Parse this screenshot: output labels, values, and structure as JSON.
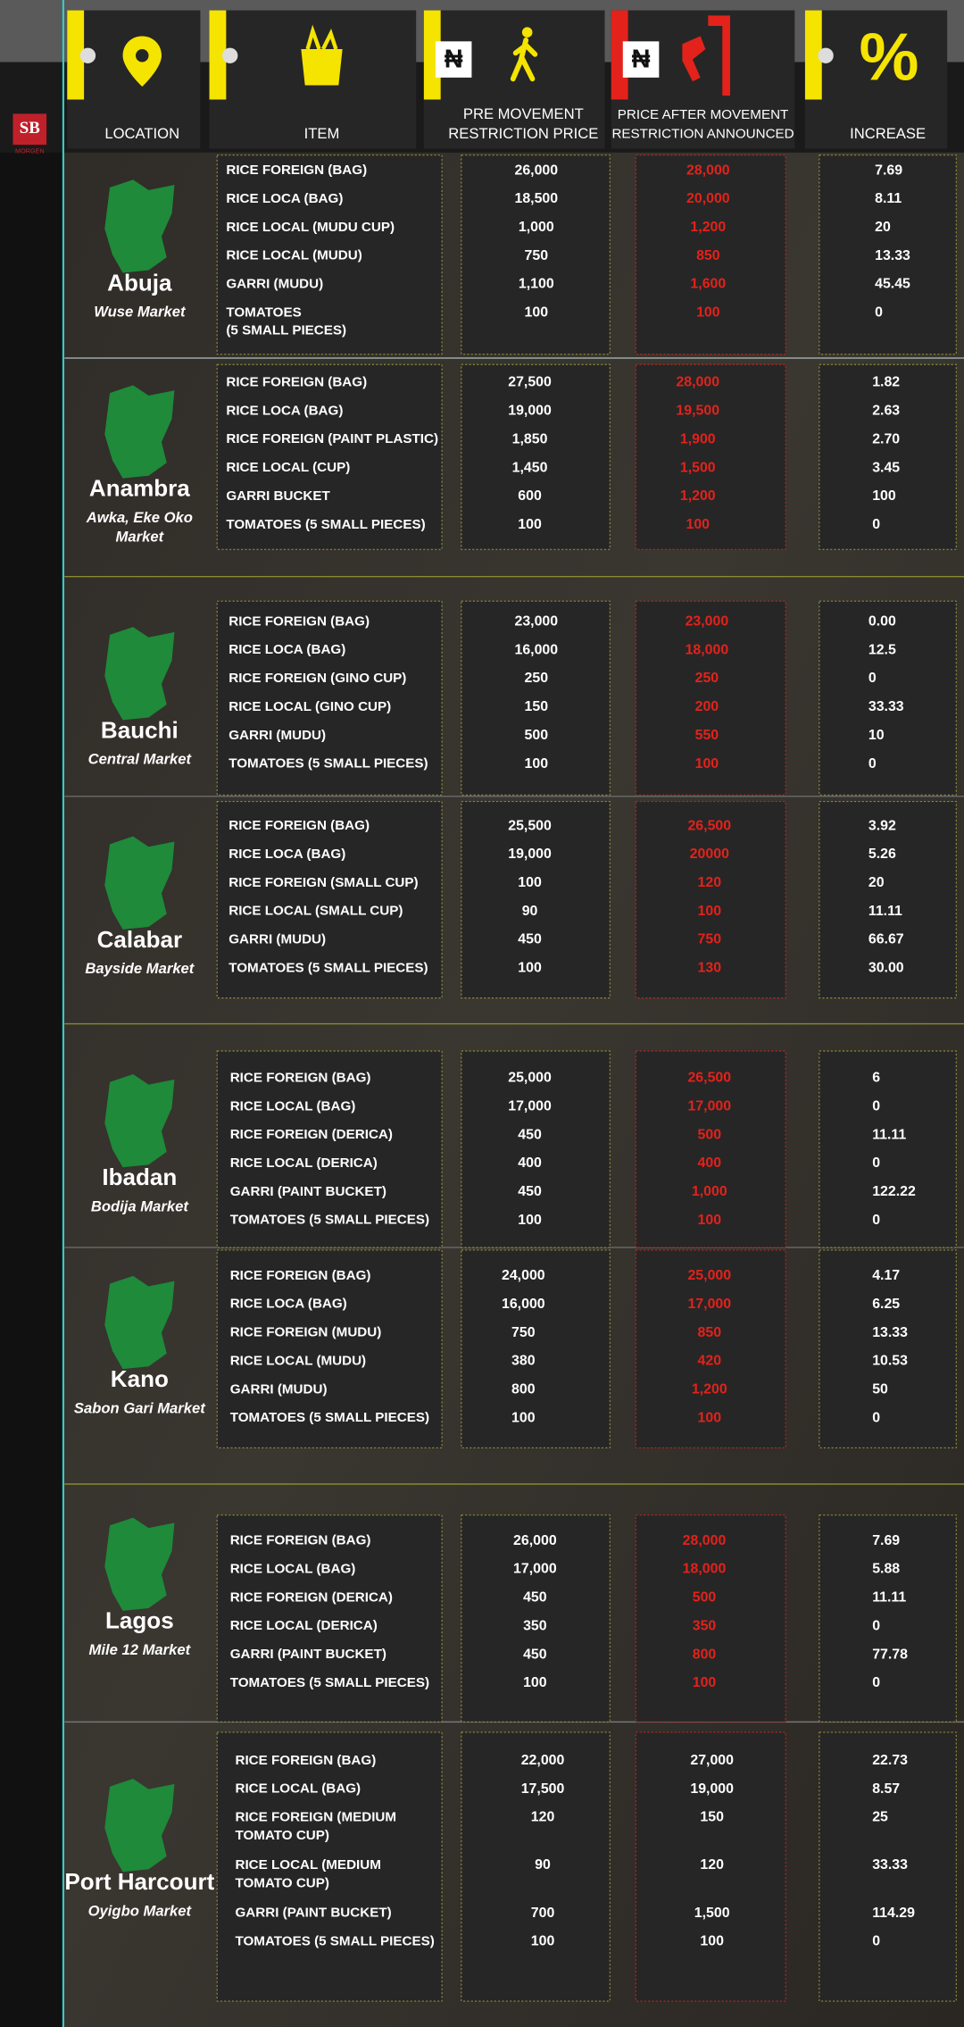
{
  "logo": {
    "initials": "SB",
    "name": "MORGEN"
  },
  "header": {
    "currency": "₦",
    "percent": "%",
    "columns": [
      [
        "LOCATION"
      ],
      [
        "ITEM"
      ],
      [
        "PRE MOVEMENT",
        "RESTRICTION PRICE"
      ],
      [
        "PRICE AFTER MOVEMENT",
        "RESTRICTION ANNOUNCED"
      ],
      [
        "INCREASE"
      ]
    ]
  },
  "locations": [
    {
      "name": "Abuja",
      "market": [
        "Wuse Market"
      ],
      "post_color": "#e3221b",
      "rows": [
        {
          "item": "RICE FOREIGN (BAG)",
          "pre": "26,000",
          "post": "28,000",
          "increase": "7.69"
        },
        {
          "item": "RICE LOCA (BAG)",
          "pre": "18,500",
          "post": "20,000",
          "increase": "8.11"
        },
        {
          "item": "RICE LOCAL (MUDU CUP)",
          "pre": "1,000",
          "post": "1,200",
          "increase": "20"
        },
        {
          "item": "RICE LOCAL (MUDU)",
          "pre": "750",
          "post": "850",
          "increase": "13.33"
        },
        {
          "item": "GARRI (MUDU)",
          "pre": "1,100",
          "post": "1,600",
          "increase": "45.45"
        },
        {
          "item": [
            "TOMATOES",
            "(5 SMALL PIECES)"
          ],
          "pre": "100",
          "post": "100",
          "increase": "0"
        }
      ]
    },
    {
      "name": "Anambra",
      "market": [
        "Awka, Eke Oko",
        "Market"
      ],
      "post_color": "#e3221b",
      "rows": [
        {
          "item": "RICE FOREIGN (BAG)",
          "pre": "27,500",
          "post": "28,000",
          "increase": "1.82"
        },
        {
          "item": "RICE LOCA (BAG)",
          "pre": "19,000",
          "post": "19,500",
          "increase": "2.63"
        },
        {
          "item": "RICE FOREIGN (PAINT PLASTIC)",
          "pre": "1,850",
          "post": "1,900",
          "increase": "2.70"
        },
        {
          "item": "RICE LOCAL (CUP)",
          "pre": "1,450",
          "post": "1,500",
          "increase": "3.45"
        },
        {
          "item": "GARRI BUCKET",
          "pre": "600",
          "post": "1,200",
          "increase": "100"
        },
        {
          "item": "TOMATOES (5 SMALL PIECES)",
          "pre": "100",
          "post": "100",
          "increase": "0"
        }
      ]
    },
    {
      "name": "Bauchi",
      "market": [
        "Central Market"
      ],
      "post_color": "#e3221b",
      "rows": [
        {
          "item": "RICE FOREIGN (BAG)",
          "pre": "23,000",
          "post": "23,000",
          "increase": "0.00"
        },
        {
          "item": "RICE LOCA (BAG)",
          "pre": "16,000",
          "post": "18,000",
          "increase": "12.5"
        },
        {
          "item": "RICE FOREIGN (GINO CUP)",
          "pre": "250",
          "post": "250",
          "increase": "0"
        },
        {
          "item": "RICE LOCAL (GINO CUP)",
          "pre": "150",
          "post": "200",
          "increase": "33.33"
        },
        {
          "item": "GARRI (MUDU)",
          "pre": "500",
          "post": "550",
          "increase": "10"
        },
        {
          "item": "TOMATOES (5 SMALL PIECES)",
          "pre": "100",
          "post": "100",
          "increase": "0"
        }
      ]
    },
    {
      "name": "Calabar",
      "market": [
        "Bayside Market"
      ],
      "post_color": "#e3221b",
      "rows": [
        {
          "item": "RICE FOREIGN (BAG)",
          "pre": "25,500",
          "post": "26,500",
          "increase": "3.92"
        },
        {
          "item": "RICE LOCA (BAG)",
          "pre": "19,000",
          "post": "20000",
          "increase": "5.26"
        },
        {
          "item": "RICE FOREIGN (SMALL CUP)",
          "pre": "100",
          "post": "120",
          "increase": "20"
        },
        {
          "item": "RICE LOCAL (SMALL CUP)",
          "pre": "90",
          "post": "100",
          "increase": "11.11"
        },
        {
          "item": "GARRI (MUDU)",
          "pre": "450",
          "post": "750",
          "increase": "66.67"
        },
        {
          "item": "TOMATOES (5 SMALL PIECES)",
          "pre": "100",
          "post": "130",
          "increase": "30.00"
        }
      ]
    },
    {
      "name": "Ibadan",
      "market": [
        "Bodija Market"
      ],
      "post_color": "#e3221b",
      "rows": [
        {
          "item": "RICE FOREIGN (BAG)",
          "pre": "25,000",
          "post": "26,500",
          "increase": "6"
        },
        {
          "item": "RICE LOCAL (BAG)",
          "pre": "17,000",
          "post": "17,000",
          "increase": "0"
        },
        {
          "item": "RICE FOREIGN (DERICA)",
          "pre": "450",
          "post": "500",
          "increase": "11.11"
        },
        {
          "item": "RICE LOCAL (DERICA)",
          "pre": "400",
          "post": "400",
          "increase": "0"
        },
        {
          "item": "GARRI (PAINT BUCKET)",
          "pre": "450",
          "post": "1,000",
          "increase": "122.22"
        },
        {
          "item": "TOMATOES (5 SMALL PIECES)",
          "pre": "100",
          "post": "100",
          "increase": "0"
        }
      ]
    },
    {
      "name": "Kano",
      "market": [
        "Sabon Gari Market"
      ],
      "post_color": "#e3221b",
      "rows": [
        {
          "item": "RICE FOREIGN (BAG)",
          "pre": "24,000",
          "post": "25,000",
          "increase": "4.17"
        },
        {
          "item": "RICE LOCA (BAG)",
          "pre": "16,000",
          "post": "17,000",
          "increase": "6.25"
        },
        {
          "item": "RICE FOREIGN (MUDU)",
          "pre": "750",
          "post": "850",
          "increase": "13.33"
        },
        {
          "item": "RICE LOCAL (MUDU)",
          "pre": "380",
          "post": "420",
          "increase": "10.53"
        },
        {
          "item": "GARRI (MUDU)",
          "pre": "800",
          "post": "1,200",
          "increase": "50"
        },
        {
          "item": "TOMATOES (5 SMALL PIECES)",
          "pre": "100",
          "post": "100",
          "increase": "0"
        }
      ]
    },
    {
      "name": "Lagos",
      "market": [
        "Mile 12 Market"
      ],
      "post_color": "#e3221b",
      "rows": [
        {
          "item": "RICE FOREIGN (BAG)",
          "pre": "26,000",
          "post": "28,000",
          "increase": "7.69"
        },
        {
          "item": "RICE LOCAL (BAG)",
          "pre": "17,000",
          "post": "18,000",
          "increase": "5.88"
        },
        {
          "item": "RICE FOREIGN (DERICA)",
          "pre": "450",
          "post": "500",
          "increase": "11.11"
        },
        {
          "item": "RICE LOCAL (DERICA)",
          "pre": "350",
          "post": "350",
          "increase": "0"
        },
        {
          "item": "GARRI (PAINT BUCKET)",
          "pre": "450",
          "post": "800",
          "increase": "77.78"
        },
        {
          "item": "TOMATOES (5 SMALL PIECES)",
          "pre": "100",
          "post": "100",
          "increase": "0"
        }
      ]
    },
    {
      "name": "Port Harcourt",
      "market": [
        "Oyigbo Market"
      ],
      "post_color": "#ffffff",
      "rows": [
        {
          "item": "RICE FOREIGN (BAG)",
          "pre": "22,000",
          "post": "27,000",
          "increase": "22.73"
        },
        {
          "item": "RICE LOCAL (BAG)",
          "pre": "17,500",
          "post": "19,000",
          "increase": "8.57"
        },
        {
          "item": [
            "RICE FOREIGN (MEDIUM",
            "TOMATO CUP)"
          ],
          "pre": "120",
          "post": "150",
          "increase": "25"
        },
        {
          "item": [
            "RICE LOCAL (MEDIUM",
            "TOMATO CUP)"
          ],
          "pre": "90",
          "post": "120",
          "increase": "33.33"
        },
        {
          "item": "GARRI (PAINT BUCKET)",
          "pre": "700",
          "post": "1,500",
          "increase": "114.29"
        },
        {
          "item": "TOMATOES (5 SMALL PIECES)",
          "pre": "100",
          "post": "100",
          "increase": "0"
        }
      ]
    }
  ]
}
